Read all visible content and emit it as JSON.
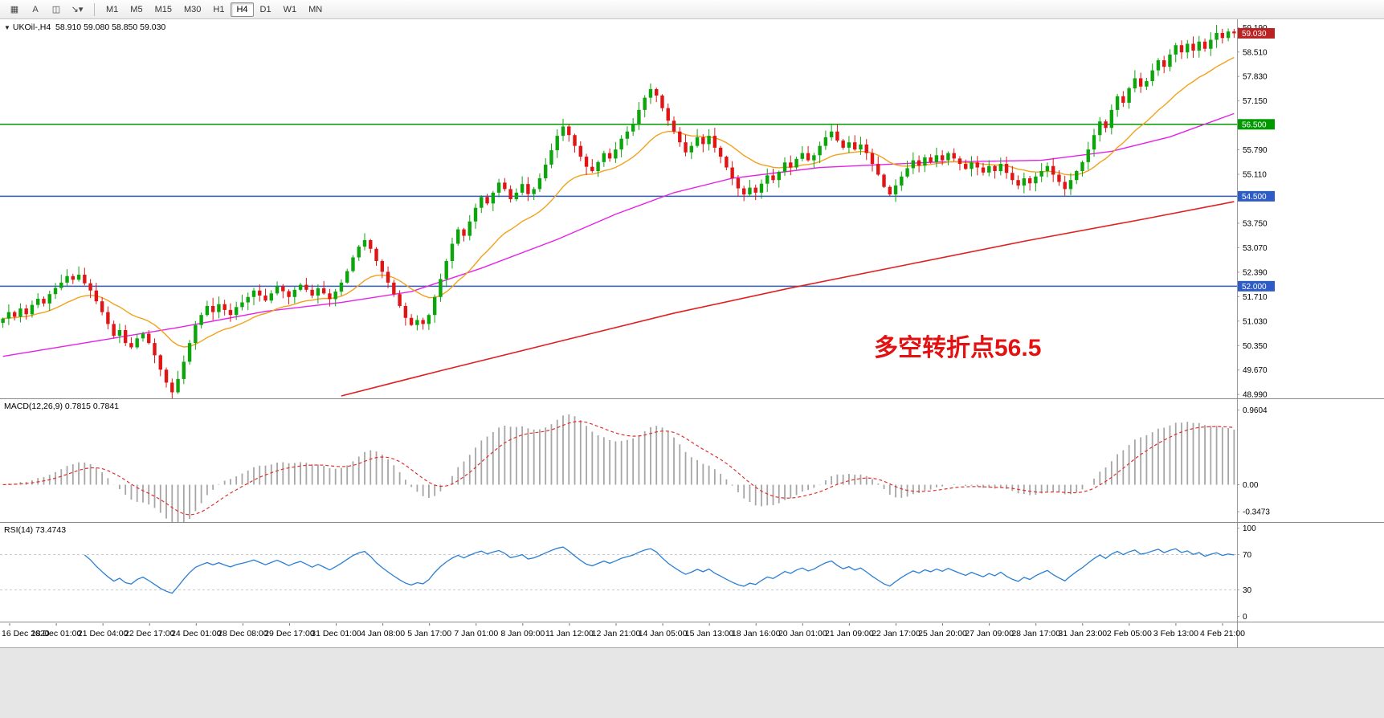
{
  "toolbar": {
    "icons": [
      {
        "name": "chart-shift-icon",
        "glyph": "▦"
      },
      {
        "name": "text-label-icon",
        "glyph": "A"
      },
      {
        "name": "text-box-icon",
        "glyph": "◫"
      },
      {
        "name": "line-style-icon",
        "glyph": "↘▾"
      }
    ],
    "timeframes": [
      "M1",
      "M5",
      "M15",
      "M30",
      "H1",
      "H4",
      "D1",
      "W1",
      "MN"
    ],
    "selected_timeframe": "H4"
  },
  "chart_header": {
    "collapse_glyph": "▼",
    "symbol": "UKOil-,H4",
    "ohlc": "58.910 59.080 58.850 59.030"
  },
  "annotation": {
    "text": "多空转折点56.5",
    "color": "#e21212"
  },
  "price_axis": {
    "ticks": [
      "59.190",
      "58.510",
      "57.830",
      "57.150",
      "55.790",
      "55.110",
      "53.750",
      "53.070",
      "52.390",
      "51.710",
      "51.030",
      "50.350",
      "49.670",
      "48.990"
    ],
    "badges": [
      {
        "name": "current-price",
        "value": "59.030",
        "price": 59.03,
        "color": "#bb2222"
      },
      {
        "name": "green-level",
        "value": "56.500",
        "price": 56.5,
        "color": "#009a00"
      },
      {
        "name": "blue-level-upper",
        "value": "54.500",
        "price": 54.5,
        "color": "#2e5cc5"
      },
      {
        "name": "blue-level-lower",
        "value": "52.000",
        "price": 52.0,
        "color": "#2e5cc5"
      }
    ]
  },
  "macd_panel": {
    "label": "MACD(12,26,9) 0.7815 0.7841",
    "scale": [
      "0.9604",
      "0.00",
      "-0.3473"
    ]
  },
  "rsi_panel": {
    "label": "RSI(14) 73.4743",
    "scale": [
      "100",
      "70",
      "30",
      "0"
    ]
  },
  "time_axis": {
    "labels": [
      "16 Dec 2020",
      "18 Dec 01:00",
      "21 Dec 04:00",
      "22 Dec 17:00",
      "24 Dec 01:00",
      "28 Dec 08:00",
      "29 Dec 17:00",
      "31 Dec 01:00",
      "4 Jan 08:00",
      "5 Jan 17:00",
      "7 Jan 01:00",
      "8 Jan 09:00",
      "11 Jan 12:00",
      "12 Jan 21:00",
      "14 Jan 05:00",
      "15 Jan 13:00",
      "18 Jan 16:00",
      "20 Jan 01:00",
      "21 Jan 09:00",
      "22 Jan 17:00",
      "25 Jan 20:00",
      "27 Jan 09:00",
      "28 Jan 17:00",
      "31 Jan 23:00",
      "2 Feb 05:00",
      "3 Feb 13:00",
      "4 Feb 21:00"
    ]
  },
  "chart_data": [
    {
      "type": "candlestick",
      "symbol": "UKOil-",
      "timeframe": "H4",
      "current_price": 59.03,
      "ylim": [
        48.86,
        59.42
      ],
      "up_color": "#0ca50c",
      "down_color": "#e01515",
      "levels": [
        {
          "price": 56.5,
          "color": "#009a00"
        },
        {
          "price": 54.5,
          "color": "#2e5cc5"
        },
        {
          "price": 52.0,
          "color": "#2e5cc5"
        }
      ],
      "closes": [
        51.1,
        51.28,
        51.15,
        51.38,
        51.22,
        51.48,
        51.65,
        51.52,
        51.78,
        51.95,
        52.1,
        52.28,
        52.18,
        52.32,
        52.08,
        51.88,
        51.58,
        51.28,
        50.95,
        50.62,
        50.78,
        50.42,
        50.3,
        50.55,
        50.68,
        50.42,
        50.08,
        49.68,
        49.32,
        49.05,
        49.42,
        49.9,
        50.42,
        50.92,
        51.2,
        51.45,
        51.28,
        51.5,
        51.34,
        51.2,
        51.42,
        51.55,
        51.7,
        51.88,
        51.74,
        51.6,
        51.8,
        52.0,
        51.86,
        51.7,
        51.9,
        52.04,
        51.9,
        51.74,
        51.94,
        51.8,
        51.64,
        51.85,
        52.1,
        52.42,
        52.8,
        53.1,
        53.28,
        53.04,
        52.7,
        52.4,
        52.1,
        51.78,
        51.45,
        51.12,
        50.92,
        51.06,
        50.95,
        51.2,
        51.7,
        52.2,
        52.7,
        53.18,
        53.58,
        53.4,
        53.8,
        54.18,
        54.48,
        54.3,
        54.6,
        54.88,
        54.7,
        54.42,
        54.6,
        54.84,
        54.56,
        54.7,
        55.0,
        55.38,
        55.78,
        56.18,
        56.44,
        56.2,
        55.9,
        55.6,
        55.32,
        55.2,
        55.45,
        55.7,
        55.55,
        55.8,
        56.1,
        56.3,
        56.5,
        56.9,
        57.24,
        57.48,
        57.3,
        56.95,
        56.6,
        56.3,
        56.0,
        55.72,
        55.9,
        56.14,
        55.95,
        56.18,
        55.85,
        55.6,
        55.3,
        55.0,
        54.72,
        54.55,
        54.74,
        54.6,
        54.85,
        55.08,
        54.95,
        55.18,
        55.44,
        55.3,
        55.54,
        55.7,
        55.5,
        55.64,
        55.9,
        56.14,
        56.3,
        56.05,
        55.85,
        56.0,
        55.8,
        55.94,
        55.7,
        55.4,
        55.1,
        54.76,
        54.55,
        54.8,
        55.05,
        55.28,
        55.5,
        55.35,
        55.58,
        55.45,
        55.64,
        55.5,
        55.7,
        55.55,
        55.4,
        55.26,
        55.44,
        55.3,
        55.16,
        55.34,
        55.2,
        55.4,
        55.15,
        54.95,
        54.8,
        55.0,
        54.86,
        55.05,
        55.2,
        55.34,
        55.1,
        54.9,
        54.7,
        54.95,
        55.2,
        55.45,
        55.8,
        56.2,
        56.58,
        56.4,
        56.9,
        57.28,
        57.1,
        57.5,
        57.78,
        57.55,
        57.7,
        58.0,
        58.28,
        58.1,
        58.44,
        58.7,
        58.5,
        58.74,
        58.55,
        58.8,
        58.6,
        58.85,
        59.04,
        58.9,
        59.08,
        59.03
      ],
      "moving_averages": {
        "fast_ema_period": 18,
        "fast_color": "#f2a11c",
        "mid_color": "#e522e5",
        "mid_points": [
          [
            0,
            50.05
          ],
          [
            15,
            50.45
          ],
          [
            30,
            50.85
          ],
          [
            45,
            51.3
          ],
          [
            58,
            51.55
          ],
          [
            70,
            51.85
          ],
          [
            82,
            52.5
          ],
          [
            95,
            53.3
          ],
          [
            105,
            54.0
          ],
          [
            115,
            54.6
          ],
          [
            125,
            55.0
          ],
          [
            140,
            55.3
          ],
          [
            160,
            55.45
          ],
          [
            178,
            55.5
          ],
          [
            190,
            55.75
          ],
          [
            200,
            56.15
          ],
          [
            211,
            56.8
          ]
        ],
        "slow_color": "#e02020",
        "slow_points": [
          [
            58,
            48.95
          ],
          [
            75,
            49.65
          ],
          [
            95,
            50.45
          ],
          [
            115,
            51.25
          ],
          [
            135,
            51.95
          ],
          [
            155,
            52.6
          ],
          [
            175,
            53.25
          ],
          [
            195,
            53.85
          ],
          [
            211,
            54.35
          ]
        ]
      }
    },
    {
      "type": "bar",
      "name": "MACD",
      "params": [
        12,
        26,
        9
      ],
      "current_values": [
        0.7815,
        0.7841
      ],
      "ylim": [
        -0.48,
        1.1
      ],
      "scale_marks": [
        0.9604,
        0.0,
        -0.3473
      ],
      "hist_color": "#a6a6a6",
      "signal_color": "#e03030"
    },
    {
      "type": "line",
      "name": "RSI",
      "period": 14,
      "current": 73.4743,
      "levels": [
        70,
        30
      ],
      "ylim": [
        0,
        100
      ],
      "display_ylim": [
        -6,
        106
      ],
      "color": "#2a7fd4",
      "level_color": "#c8c8c8"
    }
  ]
}
